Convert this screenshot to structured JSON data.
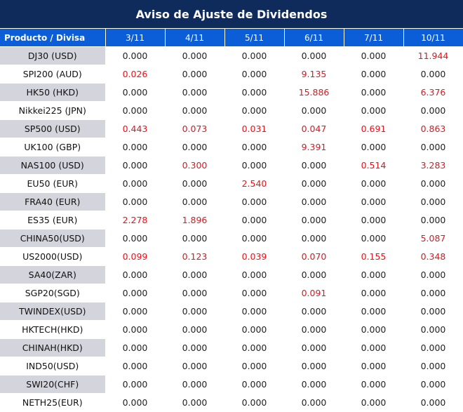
{
  "title": "Aviso de Ajuste de Dividendos",
  "columns": [
    "Producto / Divisa",
    "3/11",
    "4/11",
    "5/11",
    "6/11",
    "7/11",
    "10/11"
  ],
  "colors": {
    "header_dark": "#0e2b5c",
    "header_blue": "#0b5ed7",
    "row_shade": "#d4d4dc",
    "highlight_red": "#e8121a"
  },
  "rows": [
    {
      "product": "DJ30 (USD)",
      "values": [
        "0.000",
        "0.000",
        "0.000",
        "0.000",
        "0.000",
        "11.944"
      ]
    },
    {
      "product": "SPI200 (AUD)",
      "values": [
        "0.026",
        "0.000",
        "0.000",
        "9.135",
        "0.000",
        "0.000"
      ]
    },
    {
      "product": "HK50 (HKD)",
      "values": [
        "0.000",
        "0.000",
        "0.000",
        "15.886",
        "0.000",
        "6.376"
      ]
    },
    {
      "product": "Nikkei225 (JPN)",
      "values": [
        "0.000",
        "0.000",
        "0.000",
        "0.000",
        "0.000",
        "0.000"
      ]
    },
    {
      "product": "SP500 (USD)",
      "values": [
        "0.443",
        "0.073",
        "0.031",
        "0.047",
        "0.691",
        "0.863"
      ]
    },
    {
      "product": "UK100 (GBP)",
      "values": [
        "0.000",
        "0.000",
        "0.000",
        "9.391",
        "0.000",
        "0.000"
      ]
    },
    {
      "product": "NAS100 (USD)",
      "values": [
        "0.000",
        "0.300",
        "0.000",
        "0.000",
        "0.514",
        "3.283"
      ]
    },
    {
      "product": "EU50 (EUR)",
      "values": [
        "0.000",
        "0.000",
        "2.540",
        "0.000",
        "0.000",
        "0.000"
      ]
    },
    {
      "product": "FRA40 (EUR)",
      "values": [
        "0.000",
        "0.000",
        "0.000",
        "0.000",
        "0.000",
        "0.000"
      ]
    },
    {
      "product": "ES35 (EUR)",
      "values": [
        "2.278",
        "1.896",
        "0.000",
        "0.000",
        "0.000",
        "0.000"
      ]
    },
    {
      "product": "CHINA50(USD)",
      "values": [
        "0.000",
        "0.000",
        "0.000",
        "0.000",
        "0.000",
        "5.087"
      ]
    },
    {
      "product": "US2000(USD)",
      "values": [
        "0.099",
        "0.123",
        "0.039",
        "0.070",
        "0.155",
        "0.348"
      ]
    },
    {
      "product": "SA40(ZAR)",
      "values": [
        "0.000",
        "0.000",
        "0.000",
        "0.000",
        "0.000",
        "0.000"
      ]
    },
    {
      "product": "SGP20(SGD)",
      "values": [
        "0.000",
        "0.000",
        "0.000",
        "0.091",
        "0.000",
        "0.000"
      ]
    },
    {
      "product": "TWINDEX(USD)",
      "values": [
        "0.000",
        "0.000",
        "0.000",
        "0.000",
        "0.000",
        "0.000"
      ]
    },
    {
      "product": "HKTECH(HKD)",
      "values": [
        "0.000",
        "0.000",
        "0.000",
        "0.000",
        "0.000",
        "0.000"
      ]
    },
    {
      "product": "CHINAH(HKD)",
      "values": [
        "0.000",
        "0.000",
        "0.000",
        "0.000",
        "0.000",
        "0.000"
      ]
    },
    {
      "product": "IND50(USD)",
      "values": [
        "0.000",
        "0.000",
        "0.000",
        "0.000",
        "0.000",
        "0.000"
      ]
    },
    {
      "product": "SWI20(CHF)",
      "values": [
        "0.000",
        "0.000",
        "0.000",
        "0.000",
        "0.000",
        "0.000"
      ]
    },
    {
      "product": "NETH25(EUR)",
      "values": [
        "0.000",
        "0.000",
        "0.000",
        "0.000",
        "0.000",
        "0.000"
      ]
    }
  ]
}
